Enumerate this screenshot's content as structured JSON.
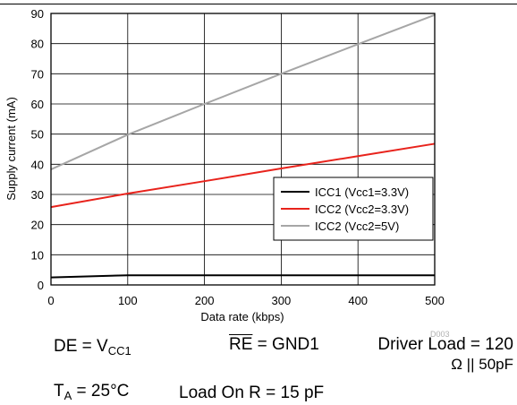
{
  "chart_data": {
    "type": "line",
    "xlabel": "Data rate (kbps)",
    "ylabel": "Supply current (mA)",
    "xlim": [
      0,
      500
    ],
    "ylim": [
      0,
      90
    ],
    "xticks": [
      "0",
      "100",
      "200",
      "300",
      "400",
      "500"
    ],
    "yticks": [
      "0",
      "10",
      "20",
      "30",
      "40",
      "50",
      "60",
      "70",
      "80",
      "90"
    ],
    "grid": true,
    "legend_position": "right",
    "series": [
      {
        "name": "ICC1 (Vcc1=3.3V)",
        "color": "#000000",
        "x": [
          0,
          100,
          200,
          300,
          400,
          500
        ],
        "y": [
          2.5,
          3.2,
          3.2,
          3.2,
          3.2,
          3.2
        ]
      },
      {
        "name": "ICC2 (Vcc2=3.3V)",
        "color": "#e8231c",
        "x": [
          0,
          100,
          200,
          300,
          400,
          500
        ],
        "y": [
          25.8,
          30.3,
          34.4,
          38.6,
          42.7,
          46.8
        ]
      },
      {
        "name": "ICC2 (Vcc2=5V)",
        "color": "#a6a6a6",
        "x": [
          0,
          100,
          200,
          300,
          400,
          500
        ],
        "y": [
          38.3,
          49.8,
          60.0,
          70.0,
          79.8,
          89.5
        ]
      }
    ]
  },
  "figure_id": "D003",
  "conditions": {
    "de_label": "DE = V",
    "de_sub": "CC1",
    "re_label": "RE",
    "re_value": " = GND1",
    "driver_load_line1": "Driver Load = 120",
    "driver_load_line2": "Ω || 50pF",
    "ta_label": "T",
    "ta_sub": "A",
    "ta_value": " = 25°C",
    "load_on_r": "Load On R = 15 pF"
  }
}
